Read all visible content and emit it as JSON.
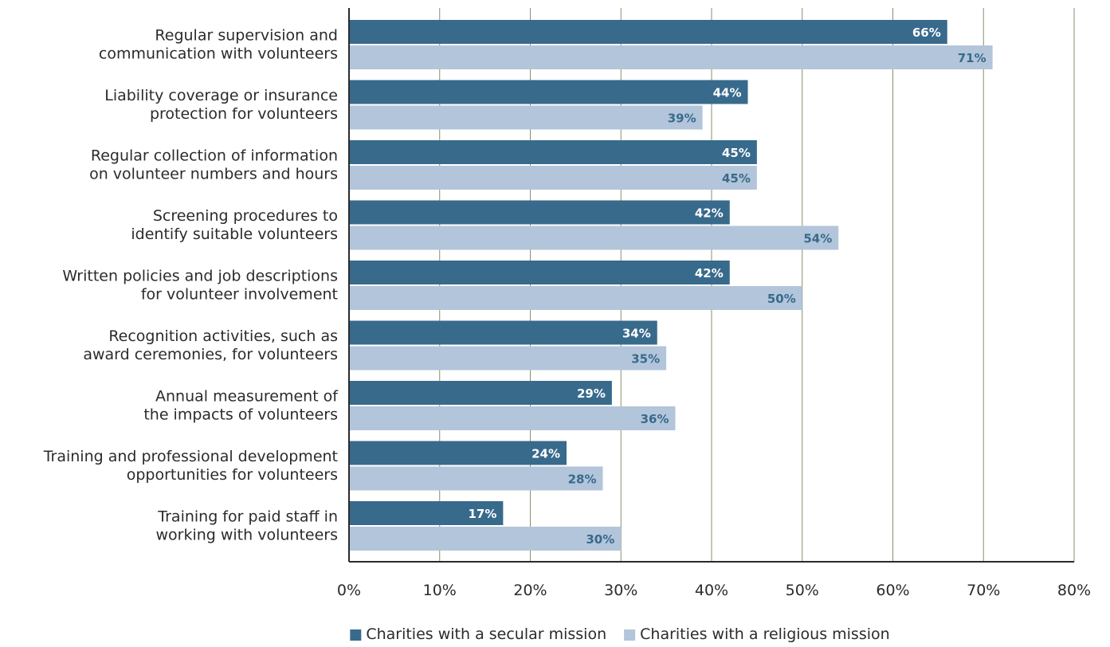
{
  "chart_data": {
    "type": "bar",
    "orientation": "horizontal",
    "categories": [
      [
        "Regular supervision and",
        "communication with volunteers"
      ],
      [
        "Liability coverage or insurance",
        "protection for volunteers"
      ],
      [
        "Regular collection of information",
        "on volunteer numbers and hours"
      ],
      [
        "Screening procedures to",
        "identify suitable volunteers"
      ],
      [
        "Written policies and job descriptions",
        "for volunteer involvement"
      ],
      [
        "Recognition activities, such as",
        "award ceremonies, for volunteers"
      ],
      [
        "Annual measurement of",
        "the impacts of volunteers"
      ],
      [
        "Training and professional development",
        "opportunities for volunteers"
      ],
      [
        "Training for paid staff in",
        "working with volunteers"
      ]
    ],
    "series": [
      {
        "name": "Charities with a secular mission",
        "color": "#386a8c",
        "label_color": "#ffffff",
        "values": [
          66,
          44,
          45,
          42,
          42,
          34,
          29,
          24,
          17
        ],
        "labels": [
          "66%",
          "44%",
          "45%",
          "42%",
          "42%",
          "34%",
          "29%",
          "24%",
          "17%"
        ]
      },
      {
        "name": "Charities with a religious mission",
        "color": "#b3c5da",
        "label_color": "#386a8c",
        "values": [
          71,
          39,
          45,
          54,
          50,
          35,
          36,
          28,
          30
        ],
        "labels": [
          "71%",
          "39%",
          "45%",
          "54%",
          "50%",
          "35%",
          "36%",
          "28%",
          "30%"
        ]
      }
    ],
    "xlim": [
      0,
      80
    ],
    "xticks": [
      0,
      10,
      20,
      30,
      40,
      50,
      60,
      70,
      80
    ],
    "xtick_labels": [
      "0%",
      "10%",
      "20%",
      "30%",
      "40%",
      "50%",
      "60%",
      "70%",
      "80%"
    ],
    "grid": "vertical",
    "gridline_color": "#8a8f6e",
    "axis_color": "#2b2b2b",
    "legend_position": "bottom-center"
  }
}
